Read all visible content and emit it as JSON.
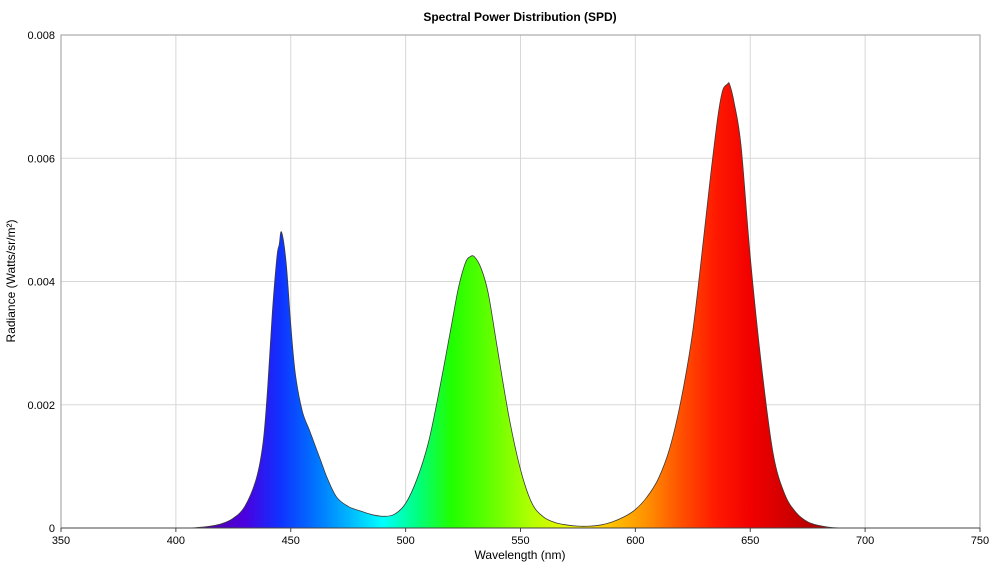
{
  "chart_data": {
    "type": "area",
    "title": "Spectral Power Distribution (SPD)",
    "xlabel": "Wavelength (nm)",
    "ylabel": "Radiance (Watts/sr/m²)",
    "xlim": [
      350,
      750
    ],
    "ylim": [
      0,
      0.008
    ],
    "x_ticks": [
      "350",
      "400",
      "450",
      "500",
      "550",
      "600",
      "650",
      "700",
      "750"
    ],
    "y_ticks": [
      "0",
      "0.002",
      "0.004",
      "0.006",
      "0.008"
    ],
    "grid": true,
    "fill": "visible-spectrum gradient by wavelength",
    "series": [
      {
        "x": [
          350,
          400,
          410,
          415,
          420,
          425,
          430,
          435,
          438,
          440,
          442,
          444,
          445,
          446,
          448,
          450,
          452,
          455,
          458,
          460,
          463,
          466,
          470,
          475,
          480,
          485,
          490,
          495,
          500,
          505,
          510,
          515,
          520,
          523,
          526,
          528,
          530,
          533,
          536,
          540,
          545,
          550,
          555,
          560,
          565,
          570,
          575,
          580,
          585,
          590,
          595,
          600,
          605,
          610,
          615,
          620,
          625,
          630,
          633,
          636,
          638,
          640,
          641,
          643,
          646,
          650,
          655,
          660,
          665,
          670,
          675,
          680,
          685,
          690,
          700,
          750
        ],
        "y": [
          0,
          0,
          1e-05,
          3e-05,
          7e-05,
          0.00016,
          0.00035,
          0.0008,
          0.0014,
          0.0023,
          0.0035,
          0.0044,
          0.0046,
          0.0048,
          0.0043,
          0.0033,
          0.0025,
          0.0019,
          0.0016,
          0.0014,
          0.0011,
          0.0008,
          0.0005,
          0.00035,
          0.00028,
          0.00022,
          0.00019,
          0.00022,
          0.0004,
          0.0008,
          0.0014,
          0.0023,
          0.0033,
          0.0039,
          0.0043,
          0.0044,
          0.0044,
          0.0042,
          0.0038,
          0.0029,
          0.0018,
          0.00095,
          0.0004,
          0.00018,
          9e-05,
          5e-05,
          3e-05,
          3e-05,
          5e-05,
          0.0001,
          0.00018,
          0.0003,
          0.0005,
          0.0008,
          0.0013,
          0.0021,
          0.0032,
          0.0048,
          0.0058,
          0.0067,
          0.0071,
          0.0072,
          0.0072,
          0.0069,
          0.0062,
          0.0044,
          0.0026,
          0.0012,
          0.00055,
          0.00025,
          0.0001,
          4e-05,
          1e-05,
          0,
          0,
          0
        ]
      }
    ]
  }
}
